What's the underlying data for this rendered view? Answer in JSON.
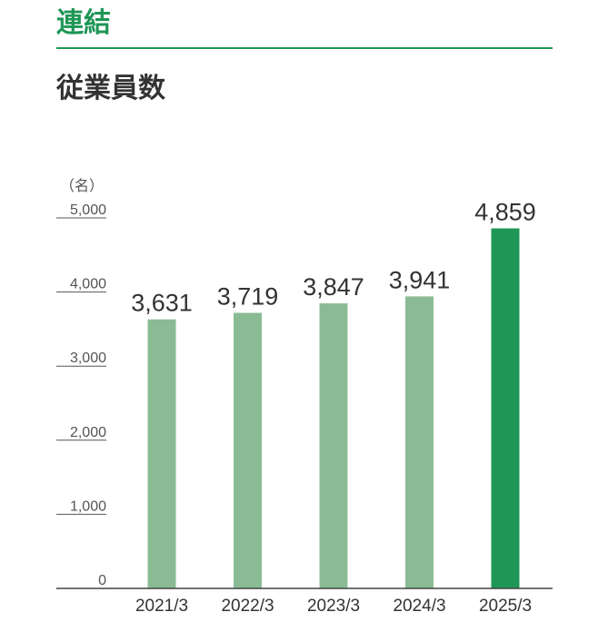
{
  "header": {
    "section_title": "連結",
    "chart_title": "従業員数"
  },
  "chart_data": {
    "type": "bar",
    "unit_label": "（名）",
    "categories": [
      "2021/3",
      "2022/3",
      "2023/3",
      "2024/3",
      "2025/3"
    ],
    "values": [
      3631,
      3719,
      3847,
      3941,
      4859
    ],
    "value_labels": [
      "3,631",
      "3,719",
      "3,847",
      "3,941",
      "4,859"
    ],
    "yticks": [
      0,
      1000,
      2000,
      3000,
      4000,
      5000
    ],
    "ytick_labels": [
      "0",
      "1,000",
      "2,000",
      "3,000",
      "4,000",
      "5,000"
    ],
    "ylim": [
      0,
      5000
    ],
    "highlight_index": 4,
    "colors": {
      "bar": "#8bbb94",
      "bar_highlight": "#1f9656",
      "accent": "#1f9656"
    },
    "grid": false,
    "xlabel": "",
    "ylabel": ""
  }
}
